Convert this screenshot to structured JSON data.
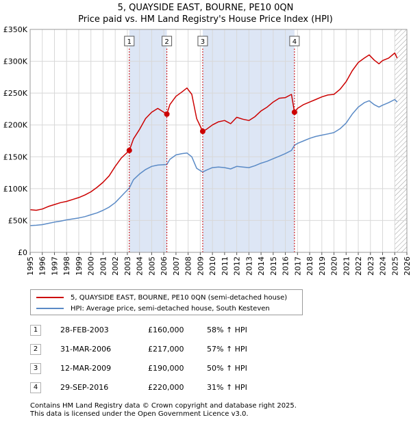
{
  "header": {
    "title": "5, QUAYSIDE EAST, BOURNE, PE10 0QN",
    "subtitle": "Price paid vs. HM Land Registry's House Price Index (HPI)"
  },
  "colors": {
    "price_paid": "#cc0000",
    "hpi": "#5a8ac6",
    "sale_band": "#dde6f5",
    "grid": "#d8d8d8"
  },
  "chart_data": {
    "type": "line",
    "title": "5, QUAYSIDE EAST, BOURNE, PE10 0QN",
    "subtitle": "Price paid vs. HM Land Registry's House Price Index (HPI)",
    "xlabel": "",
    "ylabel": "",
    "xlim": [
      1995,
      2026
    ],
    "ylim": [
      0,
      350000
    ],
    "x_ticks": [
      1995,
      1996,
      1997,
      1998,
      1999,
      2000,
      2001,
      2002,
      2003,
      2004,
      2005,
      2006,
      2007,
      2008,
      2009,
      2010,
      2011,
      2012,
      2013,
      2014,
      2015,
      2016,
      2017,
      2018,
      2019,
      2020,
      2021,
      2022,
      2023,
      2024,
      2025,
      2026
    ],
    "y_ticks": [
      {
        "value": 0,
        "label": "£0"
      },
      {
        "value": 50000,
        "label": "£50K"
      },
      {
        "value": 100000,
        "label": "£100K"
      },
      {
        "value": 150000,
        "label": "£150K"
      },
      {
        "value": 200000,
        "label": "£200K"
      },
      {
        "value": 250000,
        "label": "£250K"
      },
      {
        "value": 300000,
        "label": "£300K"
      },
      {
        "value": 350000,
        "label": "£350K"
      }
    ],
    "grid": true,
    "future_hatch_from": 2025.0,
    "series": [
      {
        "name": "5, QUAYSIDE EAST, BOURNE, PE10 0QN (semi-detached house)",
        "key": "price_paid",
        "x": [
          1995.0,
          1995.5,
          1996.0,
          1996.5,
          1997.0,
          1997.5,
          1998.0,
          1998.5,
          1999.0,
          1999.5,
          2000.0,
          2000.5,
          2001.0,
          2001.5,
          2002.0,
          2002.5,
          2003.16,
          2003.5,
          2004.0,
          2004.5,
          2005.0,
          2005.5,
          2006.25,
          2006.5,
          2007.0,
          2007.5,
          2007.9,
          2008.3,
          2008.7,
          2009.2,
          2009.5,
          2010.0,
          2010.5,
          2011.0,
          2011.5,
          2012.0,
          2012.5,
          2013.0,
          2013.5,
          2014.0,
          2014.5,
          2015.0,
          2015.5,
          2016.0,
          2016.5,
          2016.75,
          2017.0,
          2017.5,
          2018.0,
          2018.5,
          2019.0,
          2019.5,
          2020.0,
          2020.5,
          2021.0,
          2021.5,
          2022.0,
          2022.5,
          2022.9,
          2023.3,
          2023.7,
          2024.0,
          2024.5,
          2025.0,
          2025.2
        ],
        "y": [
          67000,
          66000,
          68000,
          72000,
          75000,
          78000,
          80000,
          83000,
          86000,
          90000,
          95000,
          102000,
          110000,
          120000,
          135000,
          148000,
          160000,
          178000,
          193000,
          210000,
          220000,
          226000,
          217000,
          232000,
          245000,
          252000,
          258000,
          248000,
          210000,
          190000,
          193000,
          200000,
          205000,
          207000,
          202000,
          212000,
          209000,
          207000,
          213000,
          222000,
          228000,
          236000,
          242000,
          243000,
          248000,
          220000,
          226000,
          232000,
          236000,
          240000,
          244000,
          247000,
          248000,
          256000,
          268000,
          285000,
          298000,
          305000,
          310000,
          302000,
          296000,
          301000,
          305000,
          313000,
          305000
        ]
      },
      {
        "name": "HPI: Average price, semi-detached house, South Kesteven",
        "key": "hpi",
        "x": [
          1995.0,
          1995.5,
          1996.0,
          1996.5,
          1997.0,
          1997.5,
          1998.0,
          1998.5,
          1999.0,
          1999.5,
          2000.0,
          2000.5,
          2001.0,
          2001.5,
          2002.0,
          2002.5,
          2003.16,
          2003.5,
          2004.0,
          2004.5,
          2005.0,
          2005.5,
          2006.25,
          2006.5,
          2007.0,
          2007.5,
          2007.9,
          2008.3,
          2008.7,
          2009.2,
          2009.5,
          2010.0,
          2010.5,
          2011.0,
          2011.5,
          2012.0,
          2012.5,
          2013.0,
          2013.5,
          2014.0,
          2014.5,
          2015.0,
          2015.5,
          2016.0,
          2016.5,
          2016.75,
          2017.0,
          2017.5,
          2018.0,
          2018.5,
          2019.0,
          2019.5,
          2020.0,
          2020.5,
          2021.0,
          2021.5,
          2022.0,
          2022.5,
          2022.9,
          2023.3,
          2023.7,
          2024.0,
          2024.5,
          2025.0,
          2025.2
        ],
        "y": [
          42000,
          42500,
          43500,
          45500,
          47500,
          49000,
          51000,
          52500,
          54000,
          56000,
          59000,
          62000,
          66000,
          71000,
          78000,
          88000,
          101000,
          114000,
          123000,
          130000,
          135000,
          137000,
          138000,
          146000,
          153000,
          155000,
          156000,
          150000,
          132000,
          126000,
          129000,
          133000,
          134000,
          133000,
          131000,
          135000,
          134000,
          133000,
          136000,
          140000,
          143000,
          147000,
          151000,
          155000,
          160000,
          168000,
          171000,
          175000,
          179000,
          182000,
          184000,
          186000,
          188000,
          194000,
          203000,
          217000,
          228000,
          235000,
          238000,
          232000,
          228000,
          231000,
          235000,
          240000,
          236000
        ]
      }
    ],
    "sales": [
      {
        "id": "1",
        "x": 2003.16,
        "y": 160000
      },
      {
        "id": "2",
        "x": 2006.25,
        "y": 217000
      },
      {
        "id": "3",
        "x": 2009.2,
        "y": 190000
      },
      {
        "id": "4",
        "x": 2016.75,
        "y": 220000
      }
    ],
    "sale_bands": [
      [
        2003.16,
        2006.25
      ],
      [
        2009.2,
        2016.75
      ]
    ]
  },
  "legend": {
    "price_paid": "5, QUAYSIDE EAST, BOURNE, PE10 0QN (semi-detached house)",
    "hpi": "HPI: Average price, semi-detached house, South Kesteven"
  },
  "sales_table": [
    {
      "id": "1",
      "date": "28-FEB-2003",
      "price": "£160,000",
      "hpi": "58% ↑ HPI"
    },
    {
      "id": "2",
      "date": "31-MAR-2006",
      "price": "£217,000",
      "hpi": "57% ↑ HPI"
    },
    {
      "id": "3",
      "date": "12-MAR-2009",
      "price": "£190,000",
      "hpi": "50% ↑ HPI"
    },
    {
      "id": "4",
      "date": "29-SEP-2016",
      "price": "£220,000",
      "hpi": "31% ↑ HPI"
    }
  ],
  "footer": {
    "line1": "Contains HM Land Registry data © Crown copyright and database right 2025.",
    "line2": "This data is licensed under the Open Government Licence v3.0."
  }
}
